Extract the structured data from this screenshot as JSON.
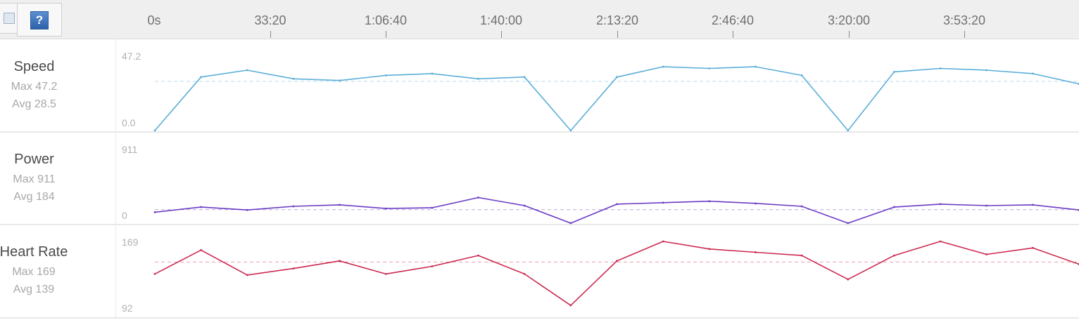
{
  "toolbar": {
    "help_label": "?"
  },
  "timeline": {
    "ticks": [
      "0s",
      "33:20",
      "1:06:40",
      "1:40:00",
      "2:13:20",
      "2:46:40",
      "3:20:00",
      "3:53:20"
    ]
  },
  "metrics": [
    {
      "name": "Speed",
      "max_text": "Max 47.2",
      "avg_text": "Avg 28.5",
      "axis_max": "47.2",
      "axis_min": "0.0",
      "color": "#5aaed8"
    },
    {
      "name": "Power",
      "max_text": "Max 911",
      "avg_text": "Avg 184",
      "axis_max": "911",
      "axis_min": "0",
      "color": "#6a3bc4"
    },
    {
      "name": "Heart Rate",
      "max_text": "Max 169",
      "avg_text": "Avg 139",
      "axis_max": "169",
      "axis_min": "92",
      "color": "#cc2a4f"
    }
  ],
  "chart_data": [
    {
      "type": "line",
      "title": "Speed",
      "x": [
        0,
        800,
        1600,
        2400,
        3200,
        4000,
        4800,
        5600,
        6400,
        7200,
        8000,
        8800,
        9600,
        10400,
        11200,
        12000,
        12800,
        13600,
        14400,
        15200,
        16000
      ],
      "values": [
        0,
        31,
        35,
        30,
        29,
        32,
        33,
        30,
        31,
        0,
        31,
        37,
        36,
        37,
        32,
        0,
        34,
        36,
        35,
        33,
        27
      ],
      "ylim": [
        0,
        47.2
      ],
      "max": 47.2,
      "avg": 28.5
    },
    {
      "type": "line",
      "title": "Power",
      "x": [
        0,
        800,
        1600,
        2400,
        3200,
        4000,
        4800,
        5600,
        6400,
        7200,
        8000,
        8800,
        9600,
        10400,
        11200,
        12000,
        12800,
        13600,
        14400,
        15200,
        16000
      ],
      "values": [
        150,
        220,
        180,
        230,
        250,
        200,
        210,
        350,
        240,
        0,
        260,
        280,
        300,
        270,
        230,
        0,
        220,
        260,
        240,
        250,
        180
      ],
      "ylim": [
        0,
        911
      ],
      "max": 911,
      "avg": 184
    },
    {
      "type": "line",
      "title": "Heart Rate",
      "x": [
        0,
        800,
        1600,
        2400,
        3200,
        4000,
        4800,
        5600,
        6400,
        7200,
        8000,
        8800,
        9600,
        10400,
        11200,
        12000,
        12800,
        13600,
        14400,
        15200,
        16000
      ],
      "values": [
        128,
        150,
        127,
        133,
        140,
        128,
        135,
        145,
        128,
        99,
        140,
        158,
        151,
        148,
        145,
        123,
        145,
        158,
        146,
        152,
        137
      ],
      "ylim": [
        92,
        169
      ],
      "max": 169,
      "avg": 139
    }
  ]
}
